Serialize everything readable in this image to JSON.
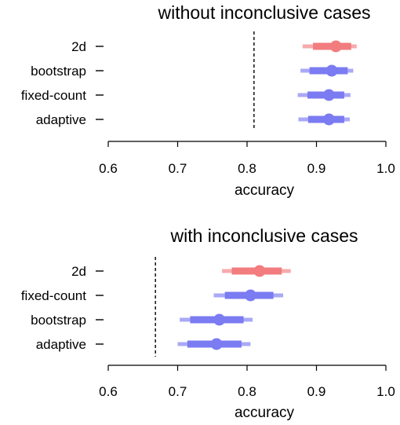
{
  "colors": {
    "highlight": "#f27c7e",
    "default": "#7b7bf2"
  },
  "chart_data": [
    {
      "type": "interval",
      "title": "without inconclusive cases",
      "xlabel": "accuracy",
      "xlim": [
        0.6,
        1.0
      ],
      "xticks": [
        "0.6",
        "0.7",
        "0.8",
        "0.9",
        "1.0"
      ],
      "reference_line": 0.81,
      "rows": [
        {
          "label": "2d",
          "point": 0.928,
          "inner": [
            0.895,
            0.95
          ],
          "outer": [
            0.88,
            0.958
          ],
          "color": "#f27c7e"
        },
        {
          "label": "bootstrap",
          "point": 0.922,
          "inner": [
            0.89,
            0.945
          ],
          "outer": [
            0.877,
            0.953
          ],
          "color": "#7b7bf2"
        },
        {
          "label": "fixed-count",
          "point": 0.918,
          "inner": [
            0.887,
            0.94
          ],
          "outer": [
            0.873,
            0.949
          ],
          "color": "#7b7bf2"
        },
        {
          "label": "adaptive",
          "point": 0.918,
          "inner": [
            0.888,
            0.94
          ],
          "outer": [
            0.874,
            0.948
          ],
          "color": "#7b7bf2"
        }
      ]
    },
    {
      "type": "interval",
      "title": "with inconclusive cases",
      "xlabel": "accuracy",
      "xlim": [
        0.6,
        1.0
      ],
      "xticks": [
        "0.6",
        "0.7",
        "0.8",
        "0.9",
        "1.0"
      ],
      "reference_line": 0.668,
      "rows": [
        {
          "label": "2d",
          "point": 0.818,
          "inner": [
            0.778,
            0.85
          ],
          "outer": [
            0.764,
            0.863
          ],
          "color": "#f27c7e"
        },
        {
          "label": "fixed-count",
          "point": 0.805,
          "inner": [
            0.768,
            0.838
          ],
          "outer": [
            0.752,
            0.852
          ],
          "color": "#7b7bf2"
        },
        {
          "label": "bootstrap",
          "point": 0.76,
          "inner": [
            0.718,
            0.795
          ],
          "outer": [
            0.703,
            0.808
          ],
          "color": "#7b7bf2"
        },
        {
          "label": "adaptive",
          "point": 0.756,
          "inner": [
            0.714,
            0.792
          ],
          "outer": [
            0.7,
            0.805
          ],
          "color": "#7b7bf2"
        }
      ]
    }
  ]
}
